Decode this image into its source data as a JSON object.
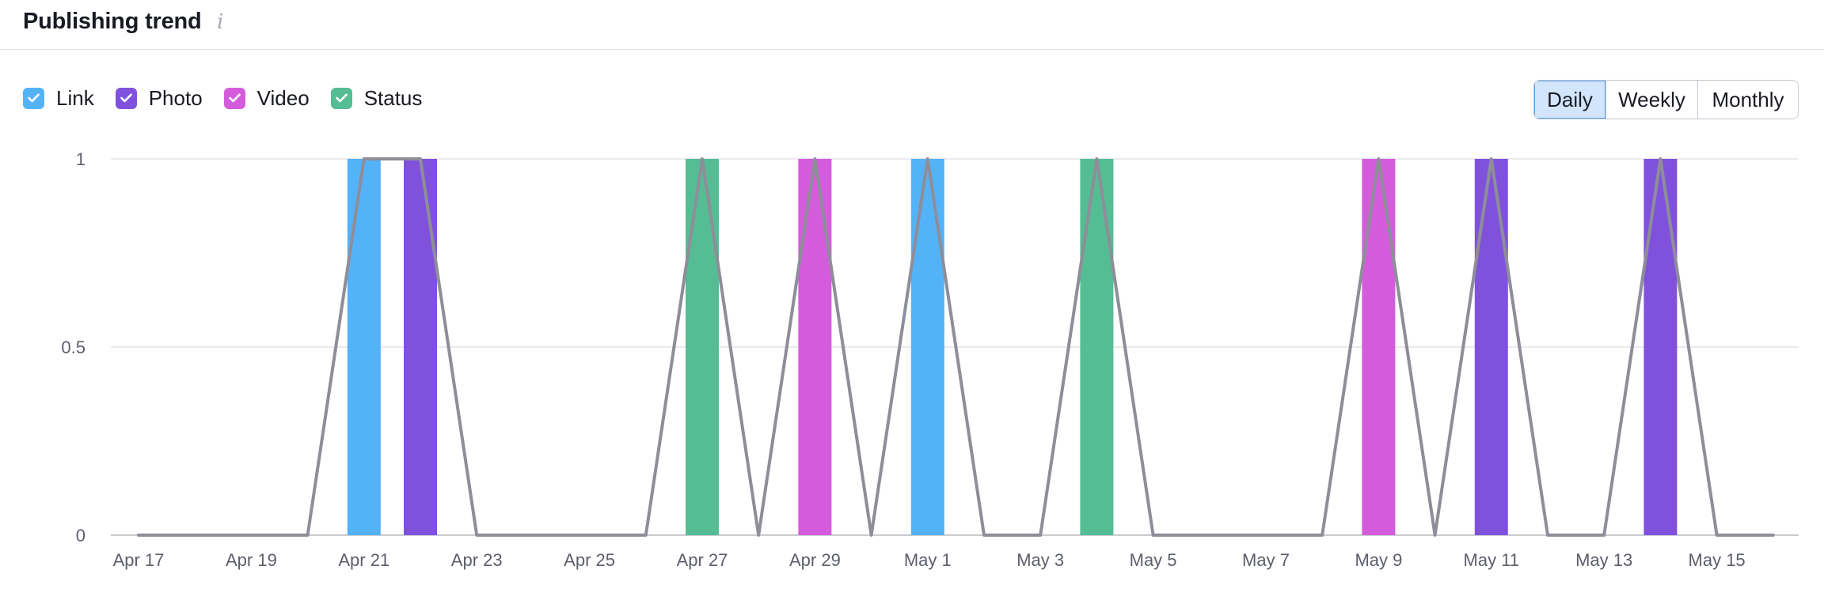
{
  "header": {
    "title": "Publishing trend",
    "info_icon": "i"
  },
  "legend": [
    {
      "label": "Link",
      "color": "#54b2f9",
      "icon": "check-icon"
    },
    {
      "label": "Photo",
      "color": "#8052dc",
      "icon": "check-icon"
    },
    {
      "label": "Video",
      "color": "#d45cdc",
      "icon": "check-icon"
    },
    {
      "label": "Status",
      "color": "#55bd94",
      "icon": "check-icon"
    }
  ],
  "period_buttons": [
    {
      "label": "Daily",
      "active": true
    },
    {
      "label": "Weekly",
      "active": false
    },
    {
      "label": "Monthly",
      "active": false
    }
  ],
  "chart_data": {
    "type": "bar",
    "title": "Publishing trend",
    "x": [
      "Apr 17",
      "Apr 18",
      "Apr 19",
      "Apr 20",
      "Apr 21",
      "Apr 22",
      "Apr 23",
      "Apr 24",
      "Apr 25",
      "Apr 26",
      "Apr 27",
      "Apr 28",
      "Apr 29",
      "Apr 30",
      "May 1",
      "May 2",
      "May 3",
      "May 4",
      "May 5",
      "May 6",
      "May 7",
      "May 8",
      "May 9",
      "May 10",
      "May 11",
      "May 12",
      "May 13",
      "May 14",
      "May 15",
      "May 16"
    ],
    "x_tick_labels": [
      "Apr 17",
      "Apr 19",
      "Apr 21",
      "Apr 23",
      "Apr 25",
      "Apr 27",
      "Apr 29",
      "May 1",
      "May 3",
      "May 5",
      "May 7",
      "May 9",
      "May 11",
      "May 13",
      "May 15"
    ],
    "series": [
      {
        "name": "Link",
        "color": "#54b2f9",
        "values": [
          0,
          0,
          0,
          0,
          1,
          0,
          0,
          0,
          0,
          0,
          0,
          0,
          0,
          0,
          1,
          0,
          0,
          0,
          0,
          0,
          0,
          0,
          0,
          0,
          0,
          0,
          0,
          0,
          0,
          0
        ]
      },
      {
        "name": "Photo",
        "color": "#8052dc",
        "values": [
          0,
          0,
          0,
          0,
          0,
          1,
          0,
          0,
          0,
          0,
          0,
          0,
          0,
          0,
          0,
          0,
          0,
          0,
          0,
          0,
          0,
          0,
          0,
          0,
          1,
          0,
          0,
          1,
          0,
          0
        ]
      },
      {
        "name": "Video",
        "color": "#d45cdc",
        "values": [
          0,
          0,
          0,
          0,
          0,
          0,
          0,
          0,
          0,
          0,
          0,
          0,
          1,
          0,
          0,
          0,
          0,
          0,
          0,
          0,
          0,
          0,
          1,
          0,
          0,
          0,
          0,
          0,
          0,
          0
        ]
      },
      {
        "name": "Status",
        "color": "#55bd94",
        "values": [
          0,
          0,
          0,
          0,
          0,
          0,
          0,
          0,
          0,
          0,
          1,
          0,
          0,
          0,
          0,
          0,
          0,
          1,
          0,
          0,
          0,
          0,
          0,
          0,
          0,
          0,
          0,
          0,
          0,
          0
        ]
      }
    ],
    "total_line": {
      "color": "#8e8e99",
      "values": [
        0,
        0,
        0,
        0,
        1,
        1,
        0,
        0,
        0,
        0,
        1,
        0,
        1,
        0,
        1,
        0,
        0,
        1,
        0,
        0,
        0,
        0,
        1,
        0,
        1,
        0,
        0,
        1,
        0,
        0
      ]
    },
    "y_ticks": [
      "0",
      "0.5",
      "1"
    ],
    "ylim": [
      0,
      1
    ],
    "grid": true,
    "legend_position": "top-left"
  }
}
